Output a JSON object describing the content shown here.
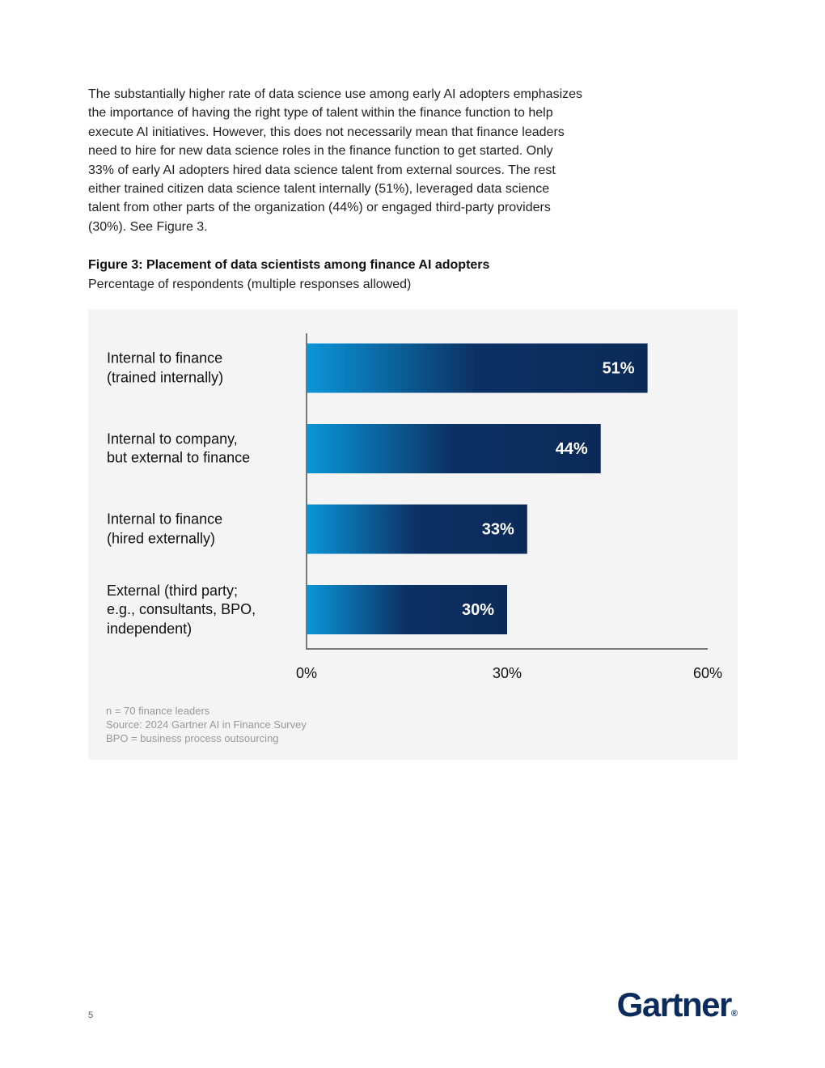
{
  "paragraph_lines": [
    "The substantially higher rate of data science use among early AI adopters emphasizes",
    "the importance of having the right type of talent within the finance function to help",
    "execute AI initiatives. However, this does not necessarily mean that finance leaders",
    "need to hire for new data science roles in the finance function to get started. Only",
    "33% of early AI adopters hired data science talent from external sources. The rest",
    "either trained citizen data science talent internally (51%), leveraged data science",
    "talent from other parts of the organization (44%) or engaged third-party providers",
    "(30%). See Figure 3."
  ],
  "figure": {
    "title": "Figure 3: Placement of data scientists among finance AI adopters",
    "subtitle": "Percentage of respondents (multiple responses allowed)"
  },
  "chart_data": {
    "type": "bar",
    "orientation": "horizontal",
    "categories": [
      "Internal to finance\n(trained internally)",
      "Internal to company,\nbut external to finance",
      "Internal to finance\n(hired externally)",
      "External (third party;\ne.g., consultants, BPO,\nindependent)"
    ],
    "values": [
      51,
      44,
      33,
      30
    ],
    "value_labels": [
      "51%",
      "44%",
      "33%",
      "30%"
    ],
    "gradient": [
      "#0a96d8",
      "#0c3063",
      "#0b2a58"
    ],
    "xlim": [
      0,
      60
    ],
    "xticks": [
      {
        "value": 0,
        "label": "0%"
      },
      {
        "value": 30,
        "label": "30%"
      },
      {
        "value": 60,
        "label": "60%"
      }
    ],
    "grid": false
  },
  "notes": [
    "n = 70 finance leaders",
    "Source: 2024 Gartner AI in Finance Survey",
    "BPO = business process outsourcing"
  ],
  "footer": {
    "page": "5",
    "logo": "Gartner",
    "logo_mark": "®"
  }
}
